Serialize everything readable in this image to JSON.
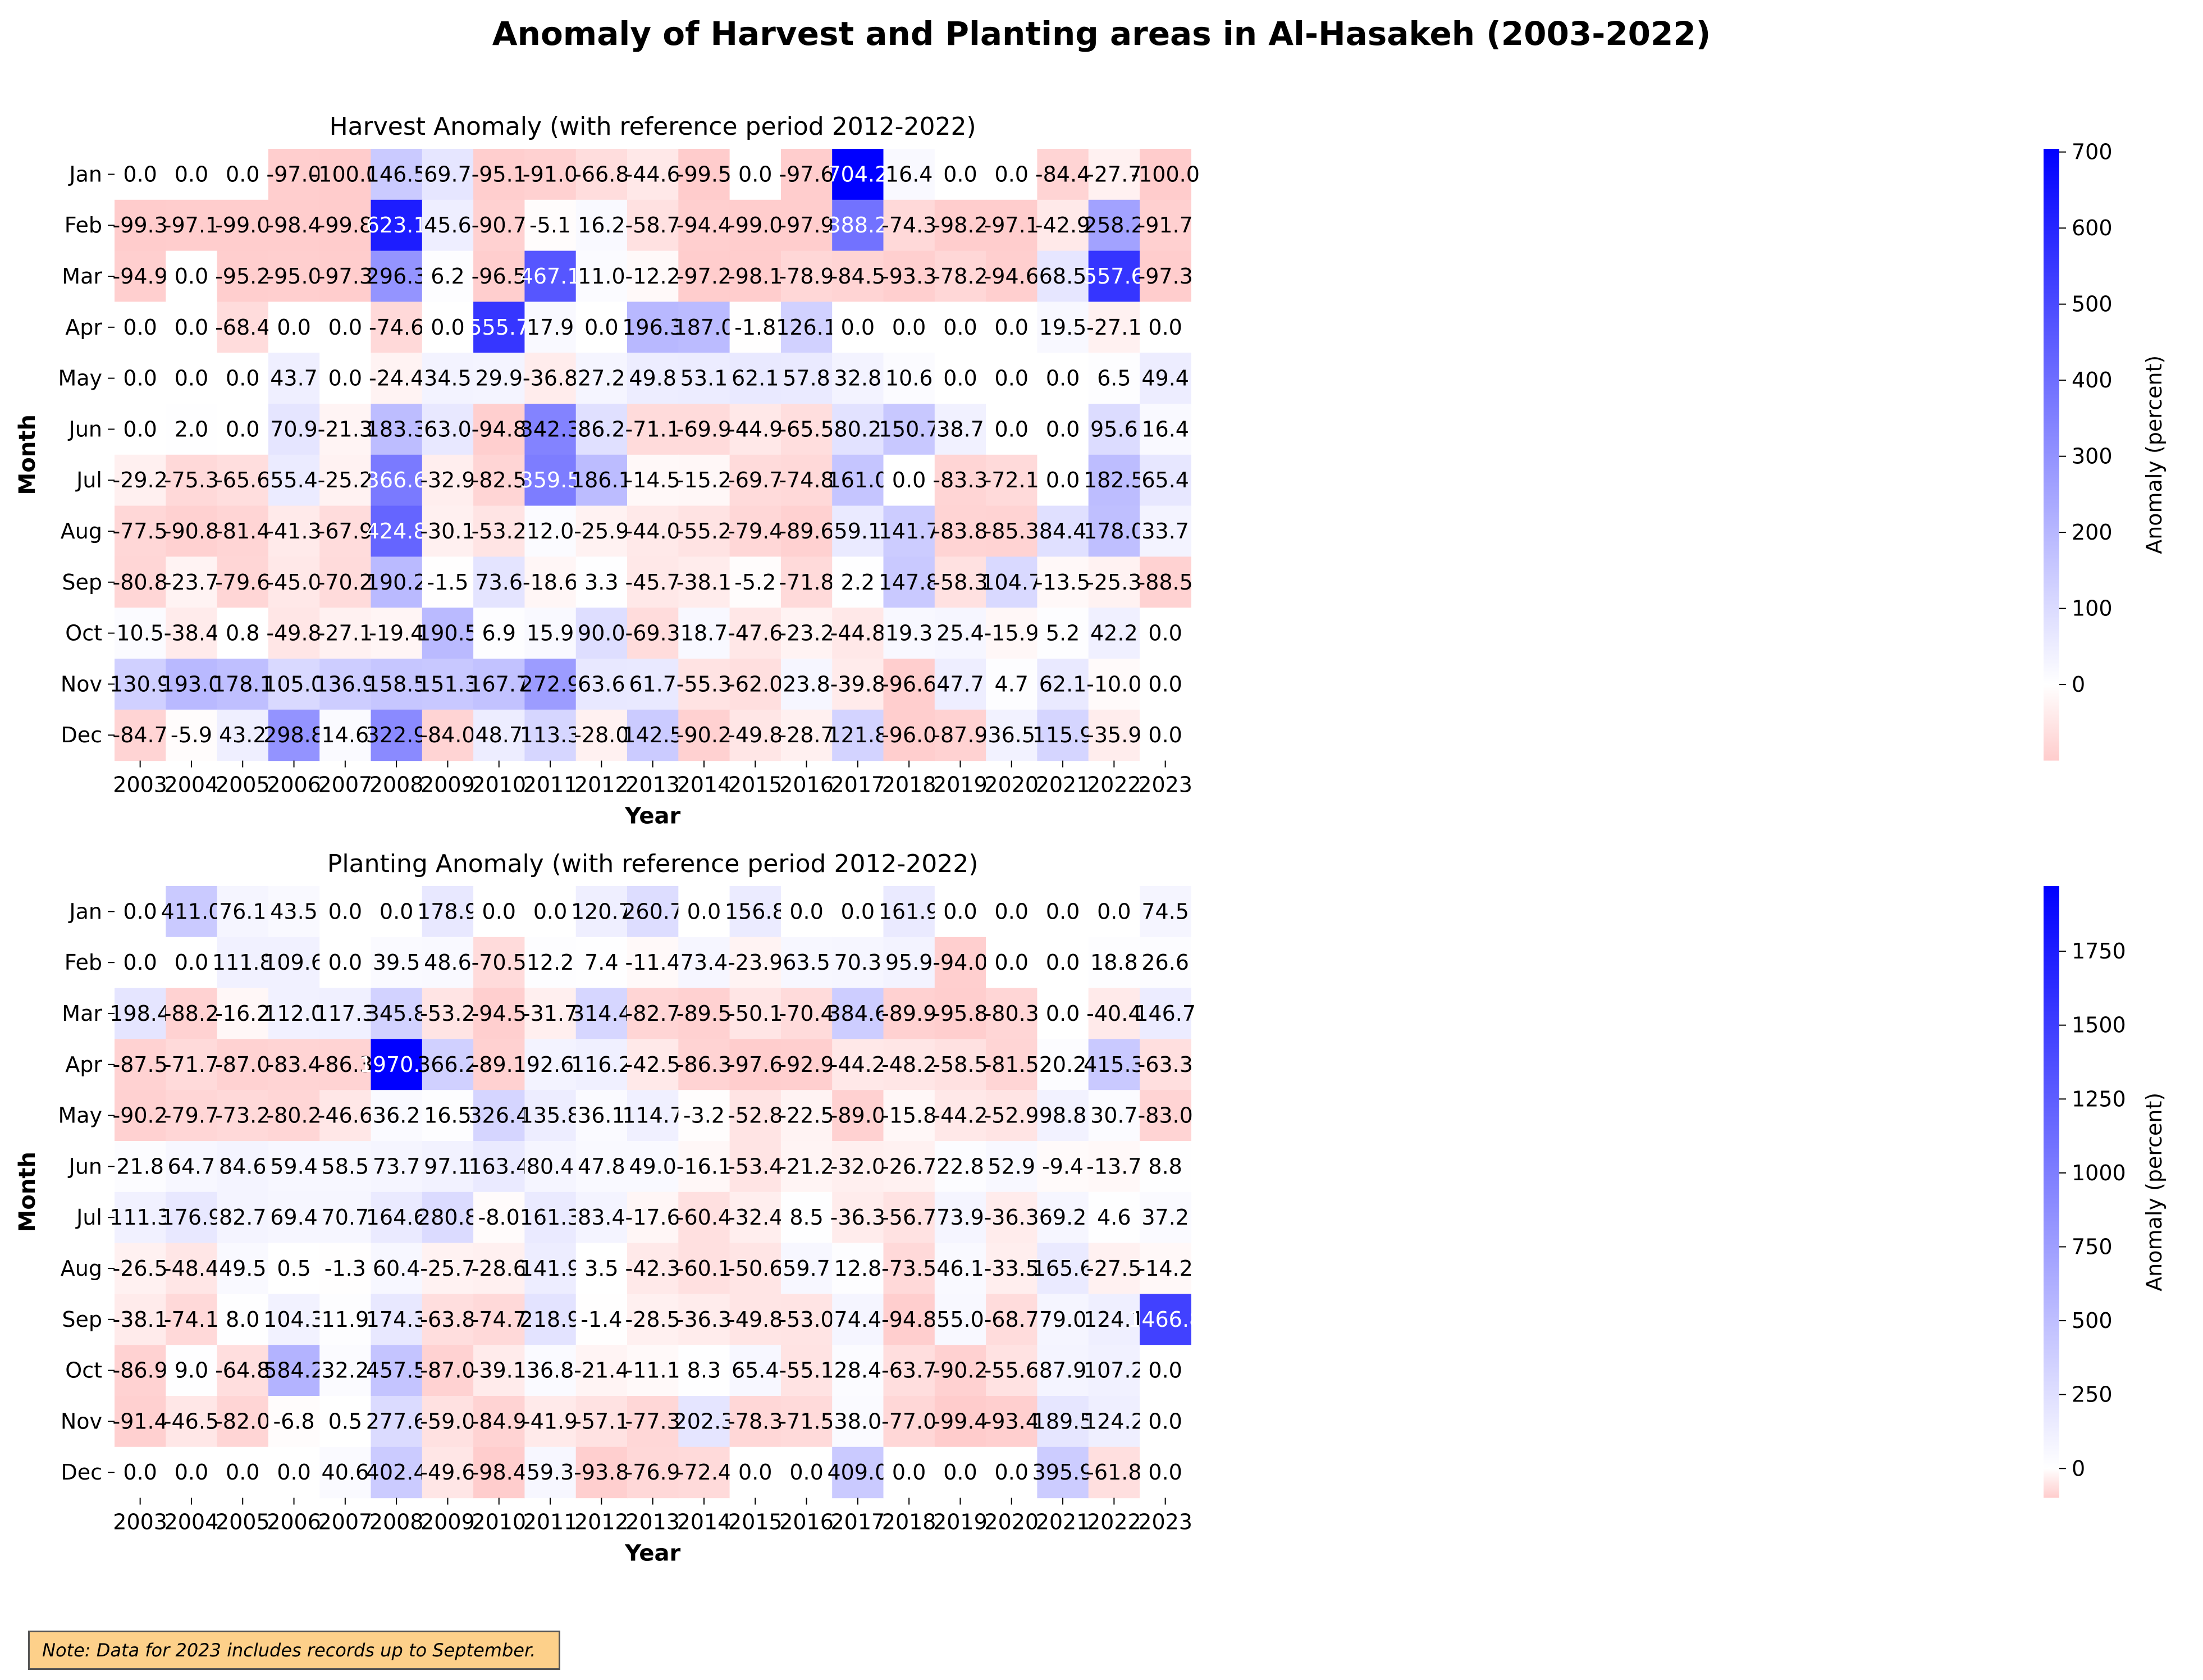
{
  "title": "Anomaly of Harvest and Planting areas in Al-Hasakeh (2003-2022)",
  "note": "Note: Data for 2023 includes records up to September.",
  "chart_data": [
    {
      "type": "heatmap",
      "title": "Harvest Anomaly (with reference period 2012-2022)",
      "xlabel": "Year",
      "ylabel": "Month",
      "x": [
        "2003",
        "2004",
        "2005",
        "2006",
        "2007",
        "2008",
        "2009",
        "2010",
        "2011",
        "2012",
        "2013",
        "2014",
        "2015",
        "2016",
        "2017",
        "2018",
        "2019",
        "2020",
        "2021",
        "2022",
        "2023"
      ],
      "y": [
        "Jan",
        "Feb",
        "Mar",
        "Apr",
        "May",
        "Jun",
        "Jul",
        "Aug",
        "Sep",
        "Oct",
        "Nov",
        "Dec"
      ],
      "values": [
        [
          0.0,
          0.0,
          0.0,
          -97.0,
          -100.0,
          146.5,
          69.7,
          -95.1,
          -91.0,
          -66.8,
          -44.6,
          -99.5,
          0.0,
          -97.6,
          704.2,
          16.4,
          0.0,
          0.0,
          -84.4,
          -27.7,
          -100.0
        ],
        [
          -99.3,
          -97.1,
          -99.0,
          -98.4,
          -99.8,
          623.1,
          45.6,
          -90.7,
          -5.1,
          16.2,
          -58.7,
          -94.4,
          -99.0,
          -97.9,
          388.2,
          -74.3,
          -98.2,
          -97.1,
          -42.9,
          258.2,
          -91.7
        ],
        [
          -94.9,
          0.0,
          -95.2,
          -95.0,
          -97.3,
          296.3,
          6.2,
          -96.5,
          467.1,
          11.0,
          -12.2,
          -97.2,
          -98.1,
          -78.9,
          -84.5,
          -93.3,
          -78.2,
          -94.6,
          68.5,
          557.6,
          -97.3
        ],
        [
          0.0,
          0.0,
          -68.4,
          0.0,
          0.0,
          -74.6,
          0.0,
          555.7,
          17.9,
          0.0,
          196.3,
          187.0,
          -1.8,
          126.1,
          0.0,
          0.0,
          0.0,
          0.0,
          19.5,
          -27.1,
          0.0
        ],
        [
          0.0,
          0.0,
          0.0,
          43.7,
          0.0,
          -24.4,
          34.5,
          29.9,
          -36.8,
          27.2,
          49.8,
          53.1,
          62.1,
          57.8,
          32.8,
          10.6,
          0.0,
          0.0,
          0.0,
          6.5,
          49.4
        ],
        [
          0.0,
          2.0,
          0.0,
          70.9,
          -21.3,
          183.3,
          63.0,
          -94.8,
          342.3,
          86.2,
          -71.1,
          -69.9,
          -44.9,
          -65.5,
          80.2,
          150.7,
          38.7,
          0.0,
          0.0,
          95.6,
          16.4
        ],
        [
          -29.2,
          -75.3,
          -65.6,
          55.4,
          -25.2,
          366.6,
          -32.9,
          -82.5,
          359.5,
          186.1,
          -14.5,
          -15.2,
          -69.7,
          -74.8,
          161.0,
          0.0,
          -83.3,
          -72.1,
          0.0,
          182.5,
          65.4
        ],
        [
          -77.5,
          -90.8,
          -81.4,
          -41.3,
          -67.9,
          424.8,
          -30.1,
          -53.2,
          12.0,
          -25.9,
          -44.0,
          -55.2,
          -79.4,
          -89.6,
          59.1,
          141.7,
          -83.8,
          -85.3,
          84.4,
          178.0,
          33.7
        ],
        [
          -80.8,
          -23.7,
          -79.6,
          -45.0,
          -70.2,
          190.2,
          -1.5,
          73.6,
          -18.6,
          3.3,
          -45.7,
          -38.1,
          -5.2,
          -71.8,
          2.2,
          147.8,
          -58.3,
          104.7,
          -13.5,
          -25.3,
          -88.5
        ],
        [
          10.5,
          -38.4,
          0.8,
          -49.8,
          -27.1,
          -19.4,
          190.5,
          6.9,
          15.9,
          90.0,
          -69.3,
          18.7,
          -47.6,
          -23.2,
          -44.8,
          19.3,
          25.4,
          -15.9,
          5.2,
          42.2,
          0.0
        ],
        [
          130.9,
          193.0,
          178.1,
          105.0,
          136.9,
          158.5,
          151.3,
          167.7,
          272.9,
          63.6,
          61.7,
          -55.3,
          -62.0,
          23.8,
          -39.8,
          -96.6,
          47.7,
          4.7,
          62.1,
          -10.0,
          0.0
        ],
        [
          -84.7,
          -5.9,
          43.2,
          298.8,
          14.6,
          322.9,
          -84.0,
          48.7,
          113.3,
          -28.0,
          142.5,
          -90.2,
          -49.8,
          -28.7,
          121.8,
          -96.0,
          -87.9,
          36.5,
          115.9,
          -35.9,
          0.0
        ]
      ],
      "colorbar": {
        "label": "Anomaly (percent)",
        "vmin": -100.0,
        "vmax": 704.2,
        "ticks": [
          0,
          100,
          200,
          300,
          400,
          500,
          600,
          700
        ],
        "colors": {
          "low": "#ffcccc",
          "mid": "#ffffff",
          "high": "#0000ff"
        }
      }
    },
    {
      "type": "heatmap",
      "title": "Planting Anomaly (with reference period 2012-2022)",
      "xlabel": "Year",
      "ylabel": "Month",
      "x": [
        "2003",
        "2004",
        "2005",
        "2006",
        "2007",
        "2008",
        "2009",
        "2010",
        "2011",
        "2012",
        "2013",
        "2014",
        "2015",
        "2016",
        "2017",
        "2018",
        "2019",
        "2020",
        "2021",
        "2022",
        "2023"
      ],
      "y": [
        "Jan",
        "Feb",
        "Mar",
        "Apr",
        "May",
        "Jun",
        "Jul",
        "Aug",
        "Sep",
        "Oct",
        "Nov",
        "Dec"
      ],
      "values": [
        [
          0.0,
          411.0,
          76.1,
          43.5,
          0.0,
          0.0,
          178.9,
          0.0,
          0.0,
          120.7,
          260.7,
          0.0,
          156.8,
          0.0,
          0.0,
          161.9,
          0.0,
          0.0,
          0.0,
          0.0,
          74.5
        ],
        [
          0.0,
          0.0,
          111.8,
          109.6,
          0.0,
          39.5,
          48.6,
          -70.5,
          12.2,
          7.4,
          -11.4,
          73.4,
          -23.9,
          63.5,
          70.3,
          95.9,
          -94.0,
          0.0,
          0.0,
          18.8,
          26.6
        ],
        [
          198.4,
          -88.2,
          -16.2,
          112.0,
          117.3,
          345.8,
          -53.2,
          -94.5,
          -31.7,
          314.4,
          -82.7,
          -89.5,
          -50.1,
          -70.4,
          384.6,
          -89.9,
          -95.8,
          -80.3,
          0.0,
          -40.4,
          146.7
        ],
        [
          -87.5,
          -71.7,
          -87.0,
          -83.4,
          -86.3,
          1970.6,
          366.2,
          -89.1,
          92.6,
          116.2,
          -42.5,
          -86.3,
          -97.6,
          -92.9,
          -44.2,
          -48.2,
          -58.5,
          -81.5,
          20.2,
          415.3,
          -63.3
        ],
        [
          -90.2,
          -79.7,
          -73.2,
          -80.2,
          -46.6,
          36.2,
          16.5,
          326.4,
          135.8,
          36.1,
          114.7,
          -3.2,
          -52.8,
          -22.5,
          -89.0,
          -15.8,
          -44.2,
          -52.9,
          98.8,
          30.7,
          -83.0
        ],
        [
          21.8,
          64.7,
          84.6,
          59.4,
          58.5,
          73.7,
          97.1,
          163.4,
          80.4,
          47.8,
          49.0,
          -16.1,
          -53.4,
          -21.2,
          -32.0,
          -26.7,
          22.8,
          52.9,
          -9.4,
          -13.7,
          8.8
        ],
        [
          111.3,
          176.9,
          82.7,
          69.4,
          70.7,
          164.6,
          280.8,
          -8.0,
          161.3,
          83.4,
          -17.6,
          -60.4,
          -32.4,
          8.5,
          -36.3,
          -56.7,
          73.9,
          -36.3,
          69.2,
          4.6,
          37.2
        ],
        [
          -26.5,
          -48.4,
          49.5,
          0.5,
          -1.3,
          60.4,
          -25.7,
          -28.6,
          141.9,
          3.5,
          -42.3,
          -60.1,
          -50.6,
          59.7,
          12.8,
          -73.5,
          46.1,
          -33.5,
          165.6,
          -27.5,
          -14.2
        ],
        [
          -38.1,
          -74.1,
          8.0,
          104.3,
          11.9,
          174.3,
          -63.8,
          -74.7,
          218.9,
          -1.4,
          -28.5,
          -36.3,
          -49.8,
          -53.0,
          74.4,
          -94.8,
          55.0,
          -68.7,
          79.0,
          124.1,
          1466.8
        ],
        [
          -86.9,
          9.0,
          -64.8,
          584.2,
          32.2,
          457.5,
          -87.0,
          -39.1,
          36.8,
          -21.4,
          -11.1,
          8.3,
          65.4,
          -55.1,
          28.4,
          -63.7,
          -90.2,
          -55.6,
          87.9,
          107.2,
          0.0
        ],
        [
          -91.4,
          -46.5,
          -82.0,
          -6.8,
          0.5,
          277.6,
          -59.0,
          -84.9,
          -41.9,
          -57.1,
          -77.3,
          202.3,
          -78.3,
          -71.5,
          38.0,
          -77.0,
          -99.4,
          -93.4,
          189.5,
          124.2,
          0.0
        ],
        [
          0.0,
          0.0,
          0.0,
          0.0,
          40.6,
          402.4,
          -49.6,
          -98.4,
          59.3,
          -93.8,
          -76.9,
          -72.4,
          0.0,
          0.0,
          409.0,
          0.0,
          0.0,
          0.0,
          395.9,
          -61.8,
          0.0
        ]
      ],
      "colorbar": {
        "label": "Anomaly (percent)",
        "vmin": -99.4,
        "vmax": 1970.6,
        "ticks": [
          0,
          250,
          500,
          750,
          1000,
          1250,
          1500,
          1750
        ],
        "colors": {
          "low": "#ffcccc",
          "mid": "#ffffff",
          "high": "#0000ff"
        }
      }
    }
  ]
}
